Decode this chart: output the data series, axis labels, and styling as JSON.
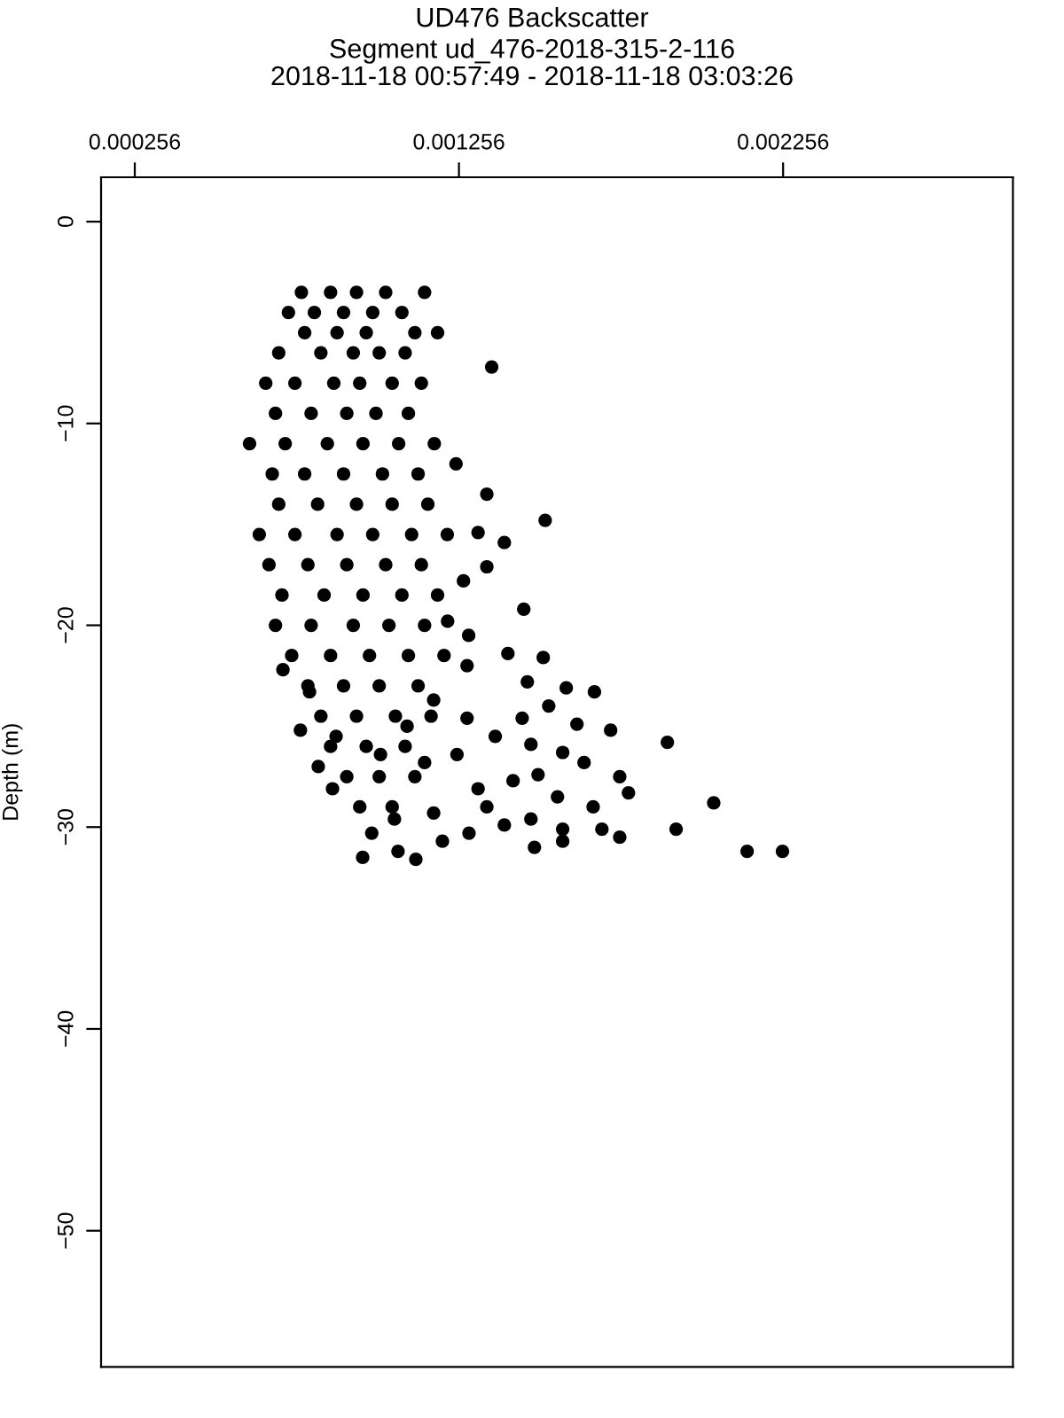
{
  "chart_data": {
    "type": "scatter",
    "title": "UD476 Backscatter",
    "subtitle": "Segment ud_476-2018-315-2-116\n2018-11-18 00:57:49 - 2018-11-18 03:03:26",
    "ylabel": "Depth (m)",
    "xlim": [
      0.000152,
      0.002965
    ],
    "ylim": [
      -56.75,
      2.2
    ],
    "xticks": [
      0.000256,
      0.001256,
      0.002256
    ],
    "yticks": [
      {
        "value": 0,
        "label": "0"
      },
      {
        "value": -10,
        "label": "−10"
      },
      {
        "value": -20,
        "label": "−20"
      },
      {
        "value": -30,
        "label": "−30"
      },
      {
        "value": -40,
        "label": "−40"
      },
      {
        "value": -50,
        "label": "−50"
      }
    ],
    "grid": false,
    "marker": "circle",
    "series": [
      {
        "color": "#000000",
        "x": [
          0.00077,
          0.00086,
          0.00094,
          0.00103,
          0.00073,
          0.00081,
          0.0009,
          0.00099,
          0.00108,
          0.00078,
          0.00088,
          0.00097,
          0.00112,
          0.00119,
          0.0007,
          0.00083,
          0.00093,
          0.00101,
          0.00109,
          0.00066,
          0.00075,
          0.00087,
          0.00095,
          0.00105,
          0.00114,
          0.00069,
          0.0008,
          0.00091,
          0.001,
          0.0011,
          0.00061,
          0.00072,
          0.00085,
          0.00096,
          0.00107,
          0.00118,
          0.00068,
          0.00078,
          0.0009,
          0.00102,
          0.00113,
          0.0007,
          0.00082,
          0.00094,
          0.00105,
          0.00116,
          0.00064,
          0.00075,
          0.00088,
          0.00099,
          0.00111,
          0.00122,
          0.00067,
          0.00079,
          0.00091,
          0.00103,
          0.00114,
          0.00071,
          0.00084,
          0.00096,
          0.00108,
          0.00119,
          0.00069,
          0.0008,
          0.00093,
          0.00104,
          0.00115,
          0.00074,
          0.00086,
          0.00098,
          0.0011,
          0.00121,
          0.00079,
          0.0009,
          0.00101,
          0.00113,
          0.00083,
          0.00094,
          0.00106,
          0.00117,
          0.00086,
          0.00097,
          0.00109,
          0.00091,
          0.00101,
          0.00112,
          0.00095,
          0.00105,
          0.00115,
          0.001357,
          0.001247,
          0.001342,
          0.001522,
          0.001396,
          0.001315,
          0.001342,
          0.001456,
          0.00127,
          0.001221,
          0.001286,
          0.001407,
          0.001281,
          0.001516,
          0.001467,
          0.001587,
          0.001674,
          0.001533,
          0.001451,
          0.00162,
          0.001724,
          0.001899,
          0.001368,
          0.001478,
          0.001576,
          0.001642,
          0.001752,
          0.0015,
          0.001423,
          0.001779,
          0.002042,
          0.00156,
          0.001315,
          0.00167,
          0.001478,
          0.001576,
          0.001396,
          0.001752,
          0.001926,
          0.001697,
          0.002145,
          0.002254,
          0.001489,
          0.001576,
          0.001123,
          0.000959,
          0.001068,
          0.001205,
          0.001287,
          0.001342,
          0.001178,
          0.001057,
          0.000987,
          0.000866,
          0.000822,
          0.000877,
          0.00115,
          0.00125,
          0.001281,
          0.001178,
          0.001096,
          0.001014,
          0.000713,
          0.000795,
          0.000767
        ],
        "values": [
          -3.5,
          -3.5,
          -3.5,
          -3.5,
          -4.5,
          -4.5,
          -4.5,
          -4.5,
          -4.5,
          -5.5,
          -5.5,
          -5.5,
          -5.5,
          -5.5,
          -6.5,
          -6.5,
          -6.5,
          -6.5,
          -6.5,
          -8,
          -8,
          -8,
          -8,
          -8,
          -8,
          -9.5,
          -9.5,
          -9.5,
          -9.5,
          -9.5,
          -11,
          -11,
          -11,
          -11,
          -11,
          -11,
          -12.5,
          -12.5,
          -12.5,
          -12.5,
          -12.5,
          -14,
          -14,
          -14,
          -14,
          -14,
          -15.5,
          -15.5,
          -15.5,
          -15.5,
          -15.5,
          -15.5,
          -17,
          -17,
          -17,
          -17,
          -17,
          -18.5,
          -18.5,
          -18.5,
          -18.5,
          -18.5,
          -20,
          -20,
          -20,
          -20,
          -20,
          -21.5,
          -21.5,
          -21.5,
          -21.5,
          -21.5,
          -23,
          -23,
          -23,
          -23,
          -24.5,
          -24.5,
          -24.5,
          -24.5,
          -26,
          -26,
          -26,
          -27.5,
          -27.5,
          -27.5,
          -29,
          -29,
          -3.5,
          -7.2,
          -12,
          -13.5,
          -14.8,
          -15.9,
          -15.4,
          -17.1,
          -19.2,
          -17.8,
          -19.8,
          -20.5,
          -21.4,
          -22,
          -21.6,
          -22.8,
          -23.1,
          -23.3,
          -24,
          -24.6,
          -24.9,
          -25.2,
          -25.8,
          -25.5,
          -25.9,
          -26.3,
          -26.8,
          -27.5,
          -27.4,
          -27.7,
          -28.3,
          -28.8,
          -28.5,
          -28.1,
          -29,
          -29.6,
          -30.1,
          -29.9,
          -30.5,
          -30.1,
          -30.1,
          -31.2,
          -31.2,
          -31,
          -30.7,
          -31.6,
          -31.5,
          -31.2,
          -30.7,
          -30.3,
          -29,
          -29.3,
          -29.6,
          -30.3,
          -28.1,
          -27,
          -25.5,
          -26.8,
          -26.4,
          -24.6,
          -23.7,
          -25,
          -26.4,
          -22.2,
          -23.3,
          -25.2
        ]
      }
    ]
  }
}
